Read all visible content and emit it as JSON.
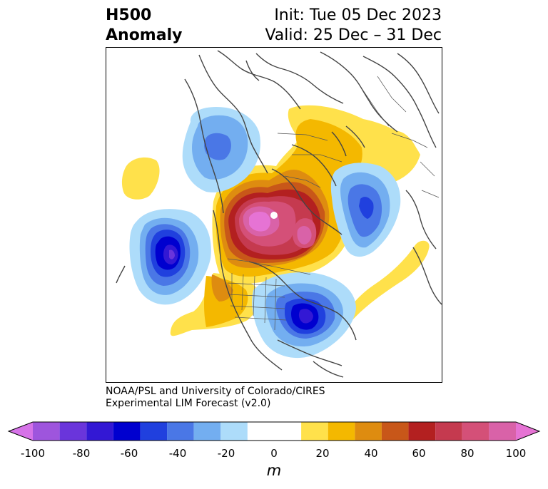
{
  "title": {
    "left_line1": "H500",
    "left_line2": "Anomaly",
    "right_line1": "Init: Tue 05 Dec 2023",
    "right_line2": "Valid: 25 Dec – 31 Dec"
  },
  "credit": {
    "line1": "NOAA/PSL and University of Colorado/CIRES",
    "line2": "Experimental LIM Forecast (v2.0)"
  },
  "colorbar": {
    "unit": "m",
    "ticks": [
      "-100",
      "-80",
      "-60",
      "-40",
      "-20",
      "0",
      "20",
      "40",
      "60",
      "80",
      "100"
    ],
    "bins": [
      {
        "from": -100,
        "to": -90,
        "color": "#d673e8"
      },
      {
        "from": -90,
        "to": -80,
        "color": "#9e55dd"
      },
      {
        "from": -80,
        "to": -70,
        "color": "#6a35db"
      },
      {
        "from": -70,
        "to": -60,
        "color": "#3318d4"
      },
      {
        "from": -60,
        "to": -50,
        "color": "#0000cf"
      },
      {
        "from": -50,
        "to": -40,
        "color": "#2040de"
      },
      {
        "from": -40,
        "to": -30,
        "color": "#4a77e6"
      },
      {
        "from": -30,
        "to": -20,
        "color": "#73aef0"
      },
      {
        "from": -20,
        "to": -10,
        "color": "#addcfa"
      },
      {
        "from": -10,
        "to": 10,
        "color": "#ffffff"
      },
      {
        "from": 10,
        "to": 20,
        "color": "#ffe14b"
      },
      {
        "from": 20,
        "to": 30,
        "color": "#f4b800"
      },
      {
        "from": 30,
        "to": 40,
        "color": "#de8c10"
      },
      {
        "from": 40,
        "to": 50,
        "color": "#c85719"
      },
      {
        "from": 50,
        "to": 60,
        "color": "#b32020"
      },
      {
        "from": 60,
        "to": 70,
        "color": "#c53a4f"
      },
      {
        "from": 70,
        "to": 80,
        "color": "#d45078"
      },
      {
        "from": 80,
        "to": 90,
        "color": "#d962a8"
      },
      {
        "from": 90,
        "to": 100,
        "color": "#e673d4"
      }
    ],
    "extend": "both",
    "low_color": "#d673e8",
    "high_color": "#e673d4"
  }
}
